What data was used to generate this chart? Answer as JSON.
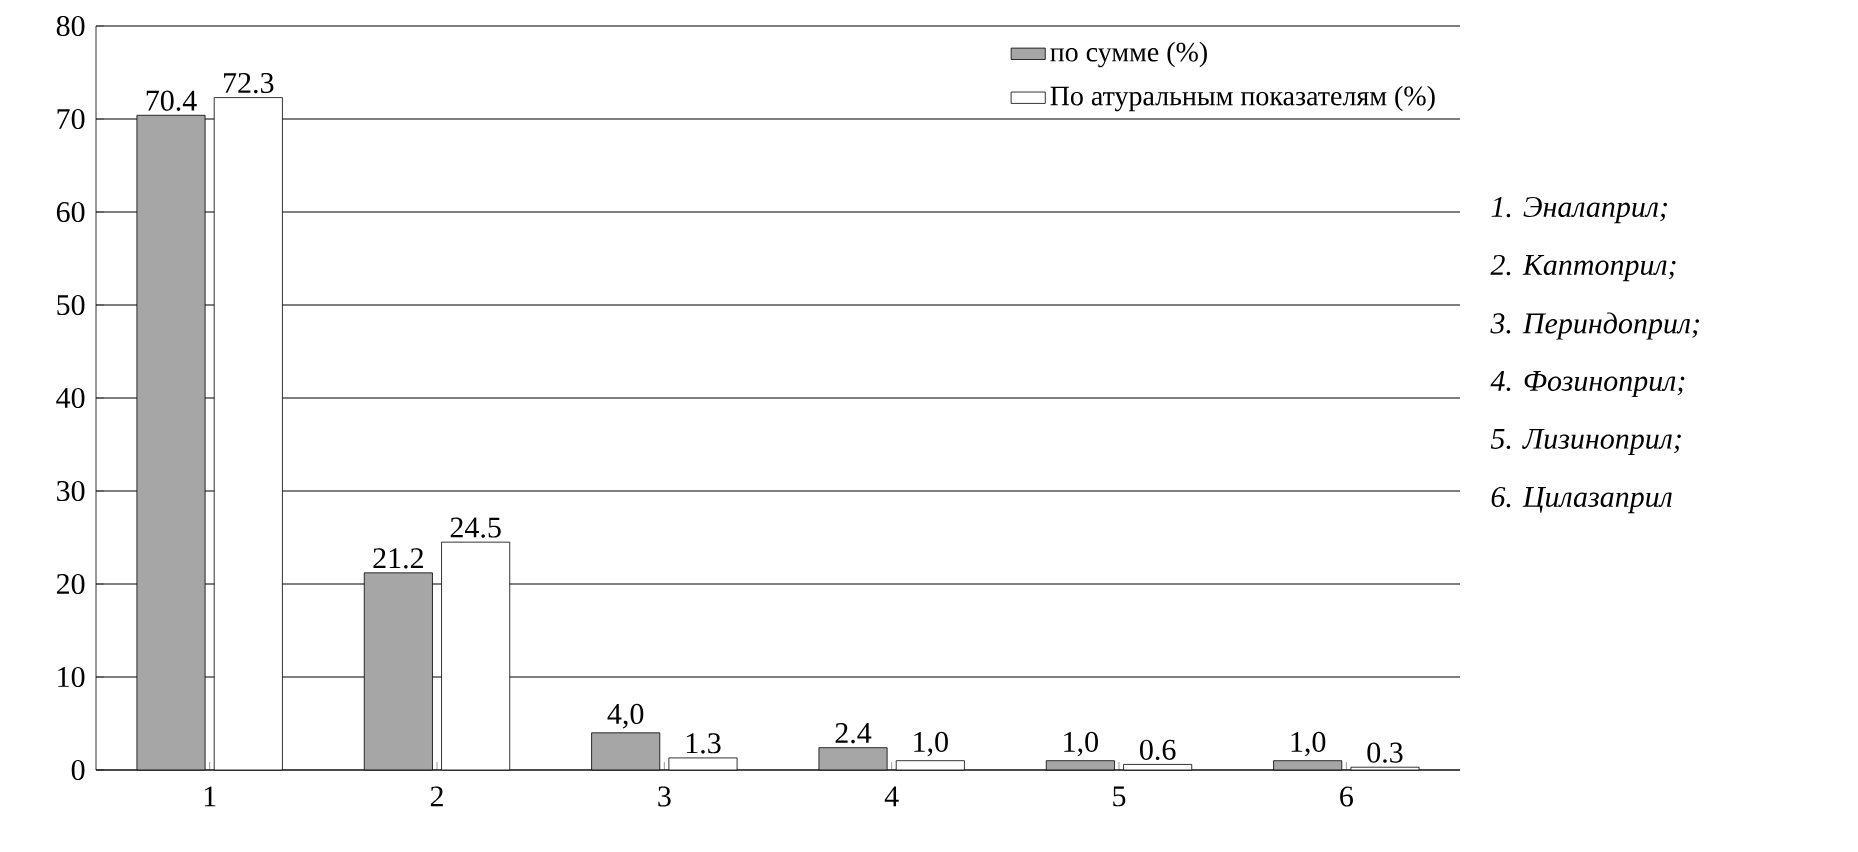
{
  "chart_data": {
    "type": "bar",
    "categories": [
      "1",
      "2",
      "3",
      "4",
      "5",
      "6"
    ],
    "series": [
      {
        "name": "по сумме (%)",
        "color": "#a6a6a6",
        "values": [
          70.4,
          21.2,
          4.0,
          2.4,
          1.0,
          1.0
        ],
        "value_labels": [
          "70.4",
          "21.2",
          "4,0",
          "2.4",
          "1,0",
          "1,0"
        ]
      },
      {
        "name": "По атуральным показателям (%)",
        "color": "#ffffff",
        "values": [
          72.3,
          24.5,
          1.3,
          1.0,
          0.6,
          0.3
        ],
        "value_labels": [
          "72.3",
          "24.5",
          "1.3",
          "1,0",
          "0.6",
          "0.3"
        ]
      }
    ],
    "ylim": [
      0,
      80
    ],
    "yticks": [
      0,
      10,
      20,
      30,
      40,
      50,
      60,
      70,
      80
    ],
    "grid": "y",
    "legend": "top right",
    "annotations": [
      "1.  Эналаприл;",
      "2.  Каптоприл;",
      "3.  Периндоприл;",
      "4.  Фозиноприл;",
      "5.  Лизиноприл;",
      "6.  Цилазаприл"
    ]
  }
}
